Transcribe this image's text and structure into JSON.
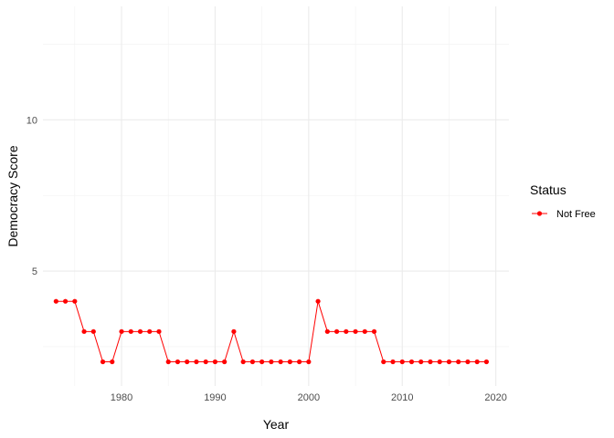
{
  "chart_data": {
    "type": "line",
    "xlabel": "Year",
    "ylabel": "Democracy Score",
    "xlim": [
      1971.6,
      2021.4
    ],
    "ylim": [
      1.2,
      13.75
    ],
    "x_ticks": [
      1980,
      1990,
      2000,
      2010,
      2020
    ],
    "y_ticks": [
      5,
      10
    ],
    "grid": true,
    "legend": {
      "title": "Status",
      "position": "right",
      "entries": [
        {
          "label": "Not Free",
          "color": "#ff0000"
        }
      ]
    },
    "series": [
      {
        "name": "Not Free",
        "color": "#ff0000",
        "x": [
          1973,
          1974,
          1975,
          1976,
          1977,
          1978,
          1979,
          1980,
          1981,
          1982,
          1983,
          1984,
          1985,
          1986,
          1987,
          1988,
          1989,
          1990,
          1991,
          1992,
          1993,
          1994,
          1995,
          1996,
          1997,
          1998,
          1999,
          2000,
          2001,
          2002,
          2003,
          2004,
          2005,
          2006,
          2007,
          2008,
          2009,
          2010,
          2011,
          2012,
          2013,
          2014,
          2015,
          2016,
          2017,
          2018,
          2019
        ],
        "y": [
          4,
          4,
          4,
          3,
          3,
          2,
          2,
          3,
          3,
          3,
          3,
          3,
          2,
          2,
          2,
          2,
          2,
          2,
          2,
          3,
          2,
          2,
          2,
          2,
          2,
          2,
          2,
          2,
          4,
          3,
          3,
          3,
          3,
          3,
          3,
          2,
          2,
          2,
          2,
          2,
          2,
          2,
          2,
          2,
          2,
          2,
          2
        ]
      }
    ]
  }
}
